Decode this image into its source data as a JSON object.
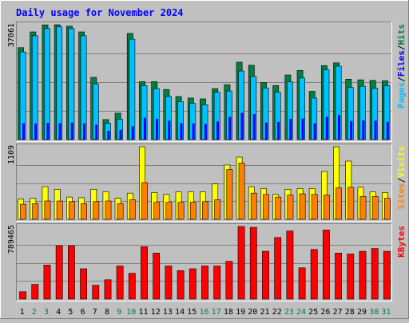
{
  "chart_data": {
    "type": "bar",
    "title": "Daily usage for November 2024",
    "x": [
      "1",
      "2",
      "3",
      "4",
      "5",
      "6",
      "7",
      "8",
      "9",
      "10",
      "11",
      "12",
      "13",
      "14",
      "15",
      "16",
      "17",
      "18",
      "19",
      "20",
      "21",
      "22",
      "23",
      "24",
      "25",
      "26",
      "27",
      "28",
      "29",
      "30",
      "31"
    ],
    "weekend_days": [
      "2",
      "3",
      "9",
      "10",
      "16",
      "17",
      "23",
      "24",
      "30",
      "31"
    ],
    "panels": [
      {
        "id": "hits",
        "max_label": "37861",
        "ymax": 37861,
        "ylabel": [
          "Pages",
          "/",
          "Files",
          "/",
          "Hits"
        ],
        "ylabel_colors": [
          "#00C0FF",
          "#000000",
          "#0000FF",
          "#000000",
          "#008040"
        ],
        "series": [
          {
            "key": "hits",
            "color": "#008040",
            "values": [
              30300,
              35500,
              37800,
              38500,
              37400,
              35500,
              20500,
              6600,
              8700,
              35000,
              19100,
              19100,
              16500,
              14200,
              13700,
              13400,
              16800,
              18100,
              25500,
              24500,
              18800,
              17800,
              21300,
              22800,
              15900,
              24400,
              25300,
              19900,
              19700,
              19500,
              19400
            ]
          },
          {
            "key": "files",
            "color": "#00C0FF",
            "values": [
              28900,
              34200,
              36600,
              37200,
              36600,
              34200,
              18400,
              5400,
              6700,
              33100,
              17800,
              16800,
              14200,
              12500,
              11900,
              11500,
              15600,
              16000,
              22600,
              20800,
              17000,
              15600,
              19000,
              20300,
              13700,
              23000,
              24200,
              17200,
              17600,
              16900,
              17800
            ]
          },
          {
            "key": "pages",
            "color": "#0000FF",
            "values": [
              5400,
              5300,
              5500,
              5400,
              5600,
              5300,
              4900,
              2900,
              3200,
              4400,
              7200,
              6800,
              6200,
              5400,
              5300,
              5100,
              6000,
              7500,
              8800,
              8400,
              5600,
              5800,
              6800,
              6900,
              5300,
              7500,
              8100,
              6100,
              6300,
              6200,
              5900
            ]
          }
        ]
      },
      {
        "id": "visits",
        "max_label": "1109",
        "ymax": 1109,
        "ylabel": [
          "Sites",
          "/",
          "Visits"
        ],
        "ylabel_colors": [
          "#FF8000",
          "#000000",
          "#FFFF00"
        ],
        "series": [
          {
            "key": "visits",
            "color": "#FFFF00",
            "values": [
              310,
              320,
              500,
              460,
              340,
              330,
              460,
              420,
              320,
              400,
              1110,
              410,
              380,
              420,
              420,
              420,
              540,
              830,
              950,
              500,
              470,
              380,
              460,
              470,
              470,
              730,
              1110,
              890,
              490,
              420,
              410
            ]
          },
          {
            "key": "sites",
            "color": "#FF8000",
            "values": [
              230,
              240,
              280,
              280,
              270,
              240,
              270,
              280,
              240,
              300,
              560,
              260,
              260,
              260,
              260,
              270,
              300,
              760,
              860,
              400,
              380,
              340,
              370,
              390,
              380,
              370,
              480,
              490,
              350,
              350,
              320
            ]
          }
        ]
      },
      {
        "id": "kbytes",
        "max_label": "789465",
        "ymax": 789465,
        "ylabel": [
          "KBytes"
        ],
        "ylabel_colors": [
          "#FF0000"
        ],
        "series": [
          {
            "key": "kbytes",
            "color": "#FF0000",
            "values": [
              80000,
              160000,
              370000,
              580000,
              580000,
              330000,
              150000,
              210000,
              360000,
              280000,
              570000,
              500000,
              360000,
              310000,
              330000,
              360000,
              360000,
              410000,
              790000,
              780000,
              520000,
              670000,
              740000,
              340000,
              540000,
              750000,
              500000,
              490000,
              520000,
              550000,
              520000
            ]
          }
        ]
      }
    ]
  }
}
